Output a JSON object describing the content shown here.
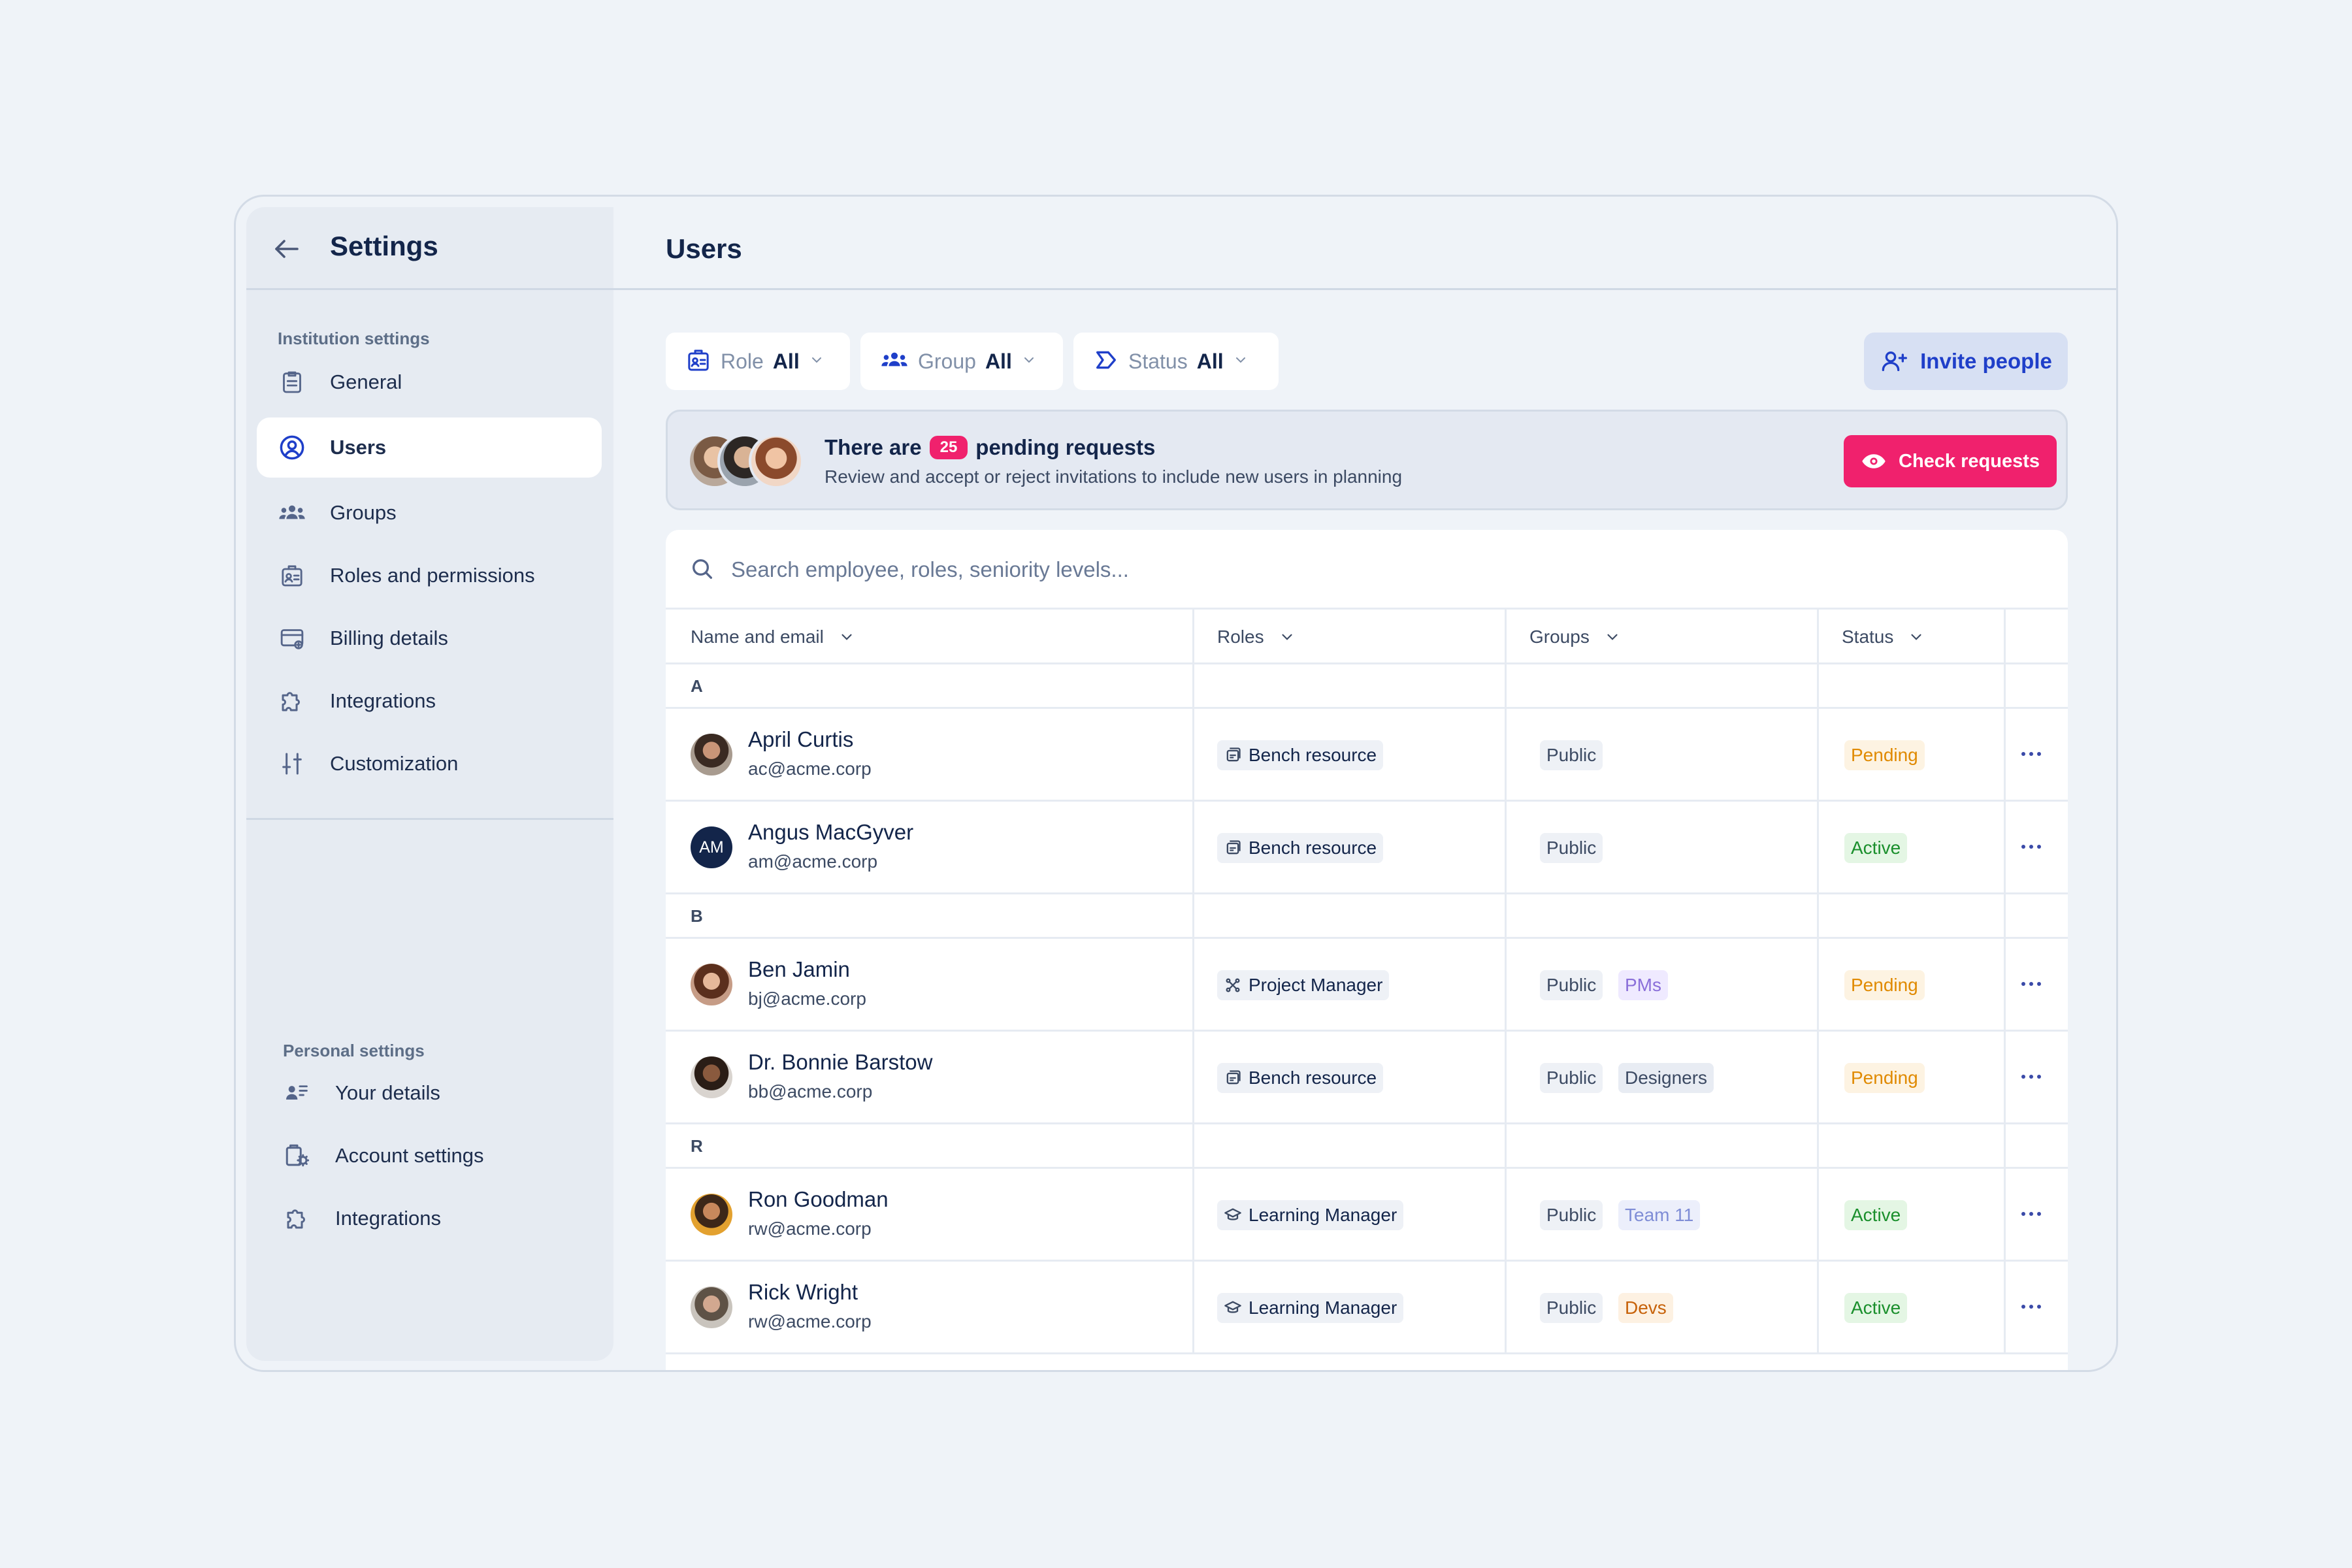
{
  "sidebar": {
    "title": "Settings",
    "institution_section": "Institution settings",
    "institution_items": [
      {
        "label": "General",
        "icon": "clipboard-icon"
      },
      {
        "label": "Users",
        "icon": "user-circle-icon",
        "active": true
      },
      {
        "label": "Groups",
        "icon": "users-group-icon"
      },
      {
        "label": "Roles and permissions",
        "icon": "id-badge-icon"
      },
      {
        "label": "Billing details",
        "icon": "billing-card-icon"
      },
      {
        "label": "Integrations",
        "icon": "puzzle-icon"
      },
      {
        "label": "Customization",
        "icon": "sliders-icon"
      }
    ],
    "personal_section": "Personal settings",
    "personal_items": [
      {
        "label": "Your details",
        "icon": "user-list-icon"
      },
      {
        "label": "Account settings",
        "icon": "settings-gear-icon"
      },
      {
        "label": "Integrations",
        "icon": "puzzle-icon"
      }
    ]
  },
  "main": {
    "title": "Users",
    "filters": [
      {
        "label": "Role",
        "value": "All",
        "icon": "id-badge-icon"
      },
      {
        "label": "Group",
        "value": "All",
        "icon": "users-group-icon"
      },
      {
        "label": "Status",
        "value": "All",
        "icon": "status-tag-icon"
      }
    ],
    "invite_label": "Invite people",
    "pending": {
      "prefix": "There are",
      "count": "25",
      "suffix": "pending requests",
      "subtitle": "Review and accept or reject invitations to include new users in planning",
      "button": "Check requests"
    },
    "search_placeholder": "Search employee, roles, seniority levels...",
    "columns": {
      "name": "Name and email",
      "roles": "Roles",
      "groups": "Groups",
      "status": "Status"
    },
    "groups": [
      {
        "letter": "A",
        "users": [
          {
            "name": "April Curtis",
            "email": "ac@acme.corp",
            "role": "Bench resource",
            "groups": [
              "Public"
            ],
            "status": "Pending"
          },
          {
            "name": "Angus MacGyver",
            "email": "am@acme.corp",
            "initials": "AM",
            "role": "Bench resource",
            "groups": [
              "Public"
            ],
            "status": "Active"
          }
        ]
      },
      {
        "letter": "B",
        "users": [
          {
            "name": "Ben Jamin",
            "email": "bj@acme.corp",
            "role": "Project Manager",
            "groups": [
              "Public",
              "PMs"
            ],
            "status": "Pending"
          },
          {
            "name": "Dr. Bonnie Barstow",
            "email": "bb@acme.corp",
            "role": "Bench resource",
            "groups": [
              "Public",
              "Designers"
            ],
            "status": "Pending"
          }
        ]
      },
      {
        "letter": "R",
        "users": [
          {
            "name": "Ron Goodman",
            "email": "rw@acme.corp",
            "role": "Learning Manager",
            "groups": [
              "Public",
              "Team 11"
            ],
            "status": "Active"
          },
          {
            "name": "Rick Wright",
            "email": "rw@acme.corp",
            "role": "Learning Manager",
            "groups": [
              "Public",
              "Devs"
            ],
            "status": "Active"
          }
        ]
      }
    ]
  },
  "colors": {
    "accent": "#1f3fc9",
    "pink": "#f0216d",
    "pending_text": "#e08a00",
    "pending_bg": "#fdf3e2",
    "active_text": "#1a8f2c",
    "active_bg": "#e4f6e4",
    "pms_text": "#8a6fd9",
    "pms_bg": "#efeaff",
    "designers_text": "#3c4a63",
    "designers_bg": "#e8ecf3",
    "team_text": "#7f8dd6",
    "team_bg": "#eceffb",
    "devs_text": "#c7620a",
    "devs_bg": "#fdf1e2"
  }
}
